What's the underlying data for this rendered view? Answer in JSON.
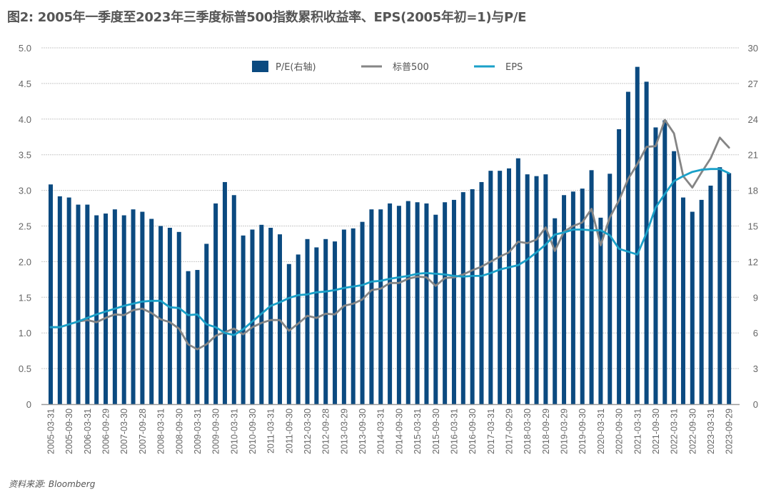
{
  "title": "图2: 2005年一季度至2023年三季度标普500指数累积收益率、EPS(2005年初=1)与P/E",
  "source": "资料来源: Bloomberg",
  "colors": {
    "pe_bar": "#0b4a80",
    "sp500_line": "#858585",
    "eps_line": "#1aa0c8",
    "grid": "#c8c8c8",
    "axis": "#9a9a9a"
  },
  "chart_data": {
    "type": "bar+line",
    "title": "图2: 2005年一季度至2023年三季度标普500指数累积收益率、EPS(2005年初=1)与P/E",
    "xlabel": "",
    "ylabel": "",
    "y_left": {
      "range": [
        0,
        5.0
      ],
      "ticks": [
        "0",
        "0.5",
        "1.0",
        "1.5",
        "2.0",
        "2.5",
        "3.0",
        "3.5",
        "4.0",
        "4.5",
        "5.0"
      ]
    },
    "y_right": {
      "range": [
        0,
        30
      ],
      "ticks": [
        "0",
        "3",
        "6",
        "9",
        "12",
        "15",
        "18",
        "21",
        "24",
        "27",
        "30"
      ]
    },
    "grid": true,
    "legend_position": "top-center",
    "legend": [
      {
        "name": "P/E(右轴)",
        "kind": "bar"
      },
      {
        "name": "标普500",
        "kind": "line"
      },
      {
        "name": "EPS",
        "kind": "line"
      }
    ],
    "x_tick_labels": [
      "2005-03-31",
      "2005-09-30",
      "2006-03-31",
      "2006-09-29",
      "2007-03-30",
      "2007-09-28",
      "2008-03-31",
      "2008-09-30",
      "2009-03-31",
      "2009-09-30",
      "2010-03-31",
      "2010-09-30",
      "2011-03-31",
      "2011-09-30",
      "2012-03-30",
      "2012-09-28",
      "2013-03-29",
      "2013-09-30",
      "2014-03-31",
      "2014-09-30",
      "2015-03-31",
      "2015-09-30",
      "2016-03-31",
      "2016-09-30",
      "2017-03-31",
      "2017-09-29",
      "2018-03-30",
      "2018-09-29",
      "2019-03-29",
      "2019-09-30",
      "2020-03-31",
      "2020-09-30",
      "2021-03-31",
      "2021-09-30",
      "2022-03-31",
      "2022-09-30",
      "2023-03-31",
      "2023-09-29"
    ],
    "x_tick_every": 2,
    "n_quarters": 75,
    "series": [
      {
        "name": "P/E(右轴)",
        "axis": "right",
        "type": "bar",
        "values": [
          18.5,
          17.5,
          17.4,
          16.8,
          16.8,
          15.9,
          16.05,
          16.4,
          15.9,
          16.4,
          16.2,
          15.6,
          15.0,
          14.85,
          14.5,
          11.2,
          11.3,
          13.5,
          16.9,
          18.7,
          17.6,
          14.2,
          14.7,
          15.1,
          14.85,
          14.3,
          11.8,
          12.6,
          13.9,
          13.2,
          13.9,
          13.7,
          14.7,
          14.8,
          15.35,
          16.4,
          16.4,
          16.9,
          16.7,
          17.1,
          17.0,
          16.9,
          15.95,
          17.0,
          17.2,
          17.85,
          18.1,
          18.7,
          19.65,
          19.65,
          19.85,
          20.7,
          19.35,
          19.2,
          19.35,
          15.65,
          17.6,
          17.9,
          18.15,
          19.7,
          15.7,
          19.4,
          23.15,
          26.3,
          28.4,
          27.15,
          23.3,
          23.9,
          21.3,
          17.4,
          16.2,
          17.2,
          18.4,
          19.95,
          19.45
        ]
      },
      {
        "name": "标普500",
        "axis": "left",
        "type": "line",
        "values": [
          1.08,
          1.08,
          1.12,
          1.16,
          1.18,
          1.15,
          1.21,
          1.26,
          1.25,
          1.32,
          1.34,
          1.28,
          1.19,
          1.15,
          1.06,
          0.84,
          0.77,
          0.84,
          0.96,
          1.01,
          1.06,
          0.98,
          1.08,
          1.14,
          1.18,
          1.18,
          1.03,
          1.13,
          1.24,
          1.21,
          1.27,
          1.26,
          1.38,
          1.41,
          1.47,
          1.6,
          1.62,
          1.7,
          1.7,
          1.76,
          1.79,
          1.78,
          1.66,
          1.77,
          1.78,
          1.82,
          1.88,
          1.93,
          2.0,
          2.07,
          2.13,
          2.28,
          2.26,
          2.31,
          2.48,
          2.15,
          2.42,
          2.5,
          2.55,
          2.74,
          2.23,
          2.62,
          2.86,
          3.16,
          3.37,
          3.61,
          3.62,
          3.99,
          3.8,
          3.2,
          3.04,
          3.25,
          3.45,
          3.74,
          3.6
        ]
      },
      {
        "name": "EPS",
        "axis": "left",
        "type": "line",
        "values": [
          1.08,
          1.08,
          1.12,
          1.16,
          1.21,
          1.26,
          1.3,
          1.34,
          1.38,
          1.41,
          1.44,
          1.45,
          1.45,
          1.36,
          1.35,
          1.25,
          1.26,
          1.12,
          1.08,
          1.0,
          0.97,
          1.05,
          1.16,
          1.27,
          1.38,
          1.43,
          1.49,
          1.53,
          1.54,
          1.57,
          1.58,
          1.6,
          1.63,
          1.65,
          1.67,
          1.72,
          1.73,
          1.76,
          1.78,
          1.8,
          1.83,
          1.84,
          1.83,
          1.82,
          1.8,
          1.79,
          1.8,
          1.8,
          1.84,
          1.89,
          1.92,
          1.95,
          2.03,
          2.13,
          2.24,
          2.38,
          2.41,
          2.45,
          2.45,
          2.44,
          2.44,
          2.37,
          2.18,
          2.14,
          2.1,
          2.4,
          2.76,
          2.95,
          3.13,
          3.2,
          3.26,
          3.29,
          3.3,
          3.3,
          3.24
        ]
      }
    ]
  }
}
